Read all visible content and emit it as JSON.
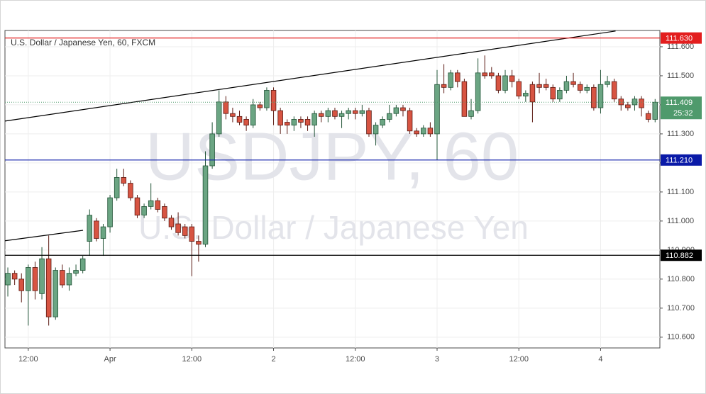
{
  "chart_data": {
    "type": "candlestick",
    "title": "U.S. Dollar / Japanese Yen, 60, FXCM",
    "watermark": "USDJPY, 60",
    "watermark_subtitle": "U.S. Dollar / Japanese Yen",
    "x": [
      0,
      1,
      2,
      3,
      4,
      5,
      6,
      7,
      8,
      9,
      10,
      11,
      12,
      13,
      14,
      15,
      16,
      17,
      18,
      19,
      20,
      21,
      22,
      23,
      24,
      25,
      26,
      27,
      28,
      29,
      30,
      31,
      32,
      33,
      34,
      35,
      36,
      37,
      38,
      39,
      40,
      41,
      42,
      43,
      44,
      45,
      46,
      47,
      48,
      49,
      50,
      51,
      52,
      53,
      54,
      55,
      56,
      57,
      58,
      59,
      60,
      61,
      62,
      63,
      64,
      65,
      66,
      67,
      68,
      69,
      70,
      71,
      72,
      73,
      74,
      75,
      76,
      77,
      78,
      79,
      80,
      81,
      82,
      83,
      84,
      85,
      86,
      87,
      88,
      89,
      90,
      91,
      92,
      93,
      94,
      95
    ],
    "open": [
      110.78,
      110.82,
      110.8,
      110.76,
      110.84,
      110.75,
      110.87,
      110.67,
      110.83,
      110.78,
      110.82,
      110.83,
      110.93,
      111.0,
      110.94,
      110.98,
      111.08,
      111.15,
      111.13,
      111.08,
      111.02,
      111.05,
      111.07,
      111.05,
      111.01,
      110.99,
      110.98,
      110.98,
      110.93,
      110.92,
      111.19,
      111.3,
      111.41,
      111.37,
      111.36,
      111.35,
      111.33,
      111.4,
      111.39,
      111.45,
      111.38,
      111.34,
      111.33,
      111.35,
      111.35,
      111.33,
      111.37,
      111.36,
      111.38,
      111.36,
      111.37,
      111.38,
      111.37,
      111.38,
      111.3,
      111.33,
      111.35,
      111.37,
      111.39,
      111.38,
      111.31,
      111.3,
      111.32,
      111.3,
      111.47,
      111.46,
      111.51,
      111.48,
      111.36,
      111.38,
      111.51,
      111.51,
      111.5,
      111.45,
      111.5,
      111.48,
      111.43,
      111.47,
      111.47,
      111.47,
      111.46,
      111.42,
      111.45,
      111.48,
      111.47,
      111.45,
      111.46,
      111.39,
      111.47,
      111.48,
      111.42,
      111.4,
      111.4,
      111.42,
      111.37,
      111.35
    ],
    "high": [
      110.84,
      110.83,
      110.82,
      110.85,
      110.86,
      110.91,
      110.95,
      110.84,
      110.85,
      110.84,
      110.85,
      110.88,
      111.04,
      111.01,
      110.99,
      111.09,
      111.18,
      111.18,
      111.14,
      111.09,
      111.06,
      111.13,
      111.08,
      111.06,
      111.02,
      111.03,
      110.99,
      110.99,
      110.95,
      111.24,
      111.34,
      111.45,
      111.43,
      111.39,
      111.38,
      111.36,
      111.42,
      111.41,
      111.46,
      111.46,
      111.39,
      111.35,
      111.36,
      111.36,
      111.36,
      111.38,
      111.38,
      111.39,
      111.39,
      111.38,
      111.39,
      111.39,
      111.4,
      111.39,
      111.34,
      111.36,
      111.4,
      111.4,
      111.4,
      111.39,
      111.32,
      111.33,
      111.34,
      111.52,
      111.54,
      111.52,
      111.52,
      111.49,
      111.42,
      111.56,
      111.57,
      111.53,
      111.51,
      111.52,
      111.52,
      111.49,
      111.45,
      111.48,
      111.51,
      111.49,
      111.47,
      111.46,
      111.5,
      111.51,
      111.48,
      111.47,
      111.47,
      111.52,
      111.5,
      111.49,
      111.43,
      111.41,
      111.43,
      111.43,
      111.38,
      111.42
    ],
    "low": [
      110.74,
      110.78,
      110.72,
      110.64,
      110.73,
      110.73,
      110.64,
      110.66,
      110.77,
      110.76,
      110.81,
      110.82,
      110.88,
      110.93,
      110.88,
      110.96,
      111.07,
      111.12,
      111.07,
      111.01,
      111.01,
      111.04,
      111.03,
      111.0,
      110.97,
      110.95,
      110.94,
      110.81,
      110.86,
      110.91,
      111.18,
      111.29,
      111.35,
      111.34,
      111.33,
      111.31,
      111.32,
      111.38,
      111.38,
      111.33,
      111.3,
      111.3,
      111.31,
      111.32,
      111.31,
      111.29,
      111.34,
      111.34,
      111.35,
      111.32,
      111.35,
      111.35,
      111.36,
      111.29,
      111.26,
      111.32,
      111.34,
      111.36,
      111.36,
      111.3,
      111.29,
      111.29,
      111.29,
      111.21,
      111.44,
      111.45,
      111.46,
      111.36,
      111.35,
      111.37,
      111.49,
      111.49,
      111.44,
      111.44,
      111.46,
      111.42,
      111.41,
      111.34,
      111.44,
      111.45,
      111.41,
      111.41,
      111.44,
      111.46,
      111.44,
      111.44,
      111.38,
      111.37,
      111.46,
      111.41,
      111.38,
      111.38,
      111.38,
      111.36,
      111.34,
      111.34
    ],
    "close": [
      110.82,
      110.8,
      110.76,
      110.84,
      110.76,
      110.87,
      110.67,
      110.83,
      110.78,
      110.82,
      110.83,
      110.87,
      111.02,
      110.94,
      110.98,
      111.08,
      111.15,
      111.13,
      111.08,
      111.02,
      111.05,
      111.07,
      111.04,
      111.01,
      110.98,
      110.96,
      110.95,
      110.93,
      110.92,
      111.19,
      111.3,
      111.41,
      111.37,
      111.36,
      111.34,
      111.33,
      111.4,
      111.39,
      111.45,
      111.38,
      111.33,
      111.33,
      111.35,
      111.34,
      111.33,
      111.37,
      111.36,
      111.38,
      111.36,
      111.37,
      111.38,
      111.37,
      111.38,
      111.3,
      111.33,
      111.35,
      111.37,
      111.39,
      111.38,
      111.31,
      111.3,
      111.32,
      111.3,
      111.47,
      111.46,
      111.51,
      111.48,
      111.36,
      111.38,
      111.51,
      111.5,
      111.5,
      111.45,
      111.5,
      111.48,
      111.43,
      111.44,
      111.41,
      111.46,
      111.46,
      111.42,
      111.45,
      111.48,
      111.47,
      111.45,
      111.46,
      111.39,
      111.47,
      111.48,
      111.42,
      111.4,
      111.39,
      111.42,
      111.39,
      111.35,
      111.409
    ],
    "up_color": "#6ba583",
    "down_color": "#d75442",
    "xlim": [
      -0.42,
      95.7
    ],
    "xticks": [
      {
        "value": 3,
        "label": "12:00"
      },
      {
        "value": 15,
        "label": "Apr"
      },
      {
        "value": 27,
        "label": "12:00"
      },
      {
        "value": 39,
        "label": "2"
      },
      {
        "value": 51,
        "label": "12:00"
      },
      {
        "value": 63,
        "label": "3"
      },
      {
        "value": 75,
        "label": "12:00"
      },
      {
        "value": 87,
        "label": "4"
      }
    ],
    "ylim": [
      110.563,
      111.656
    ],
    "yticks": [
      {
        "value": 110.6,
        "label": "110.600"
      },
      {
        "value": 110.7,
        "label": "110.700"
      },
      {
        "value": 110.8,
        "label": "110.800"
      },
      {
        "value": 110.9,
        "label": "110.900"
      },
      {
        "value": 111.0,
        "label": "111.000"
      },
      {
        "value": 111.1,
        "label": "111.100"
      },
      {
        "value": 111.2,
        "label": "111.200"
      },
      {
        "value": 111.3,
        "label": "111.300"
      },
      {
        "value": 111.4,
        "label": "111.400"
      },
      {
        "value": 111.5,
        "label": "111.500"
      },
      {
        "value": 111.6,
        "label": "111.600"
      }
    ],
    "grid": true,
    "horizontal_lines": [
      {
        "value": 111.63,
        "label": "111.630",
        "color": "#e31e1e"
      },
      {
        "value": 111.21,
        "label": "111.210",
        "color": "#0a1aa8"
      },
      {
        "value": 110.882,
        "label": "110.882",
        "color": "#000000"
      }
    ],
    "current_price": {
      "value": 111.409,
      "label": "111.409",
      "countdown": "25:32",
      "color": "#4f9a6c"
    },
    "trend_lines": [
      {
        "x": [
          -0.42,
          89.2
        ],
        "y": [
          111.344,
          111.654
        ],
        "color": "#000000"
      },
      {
        "x": [
          -0.42,
          11.04
        ],
        "y": [
          110.932,
          110.968
        ],
        "color": "#000000"
      }
    ]
  }
}
